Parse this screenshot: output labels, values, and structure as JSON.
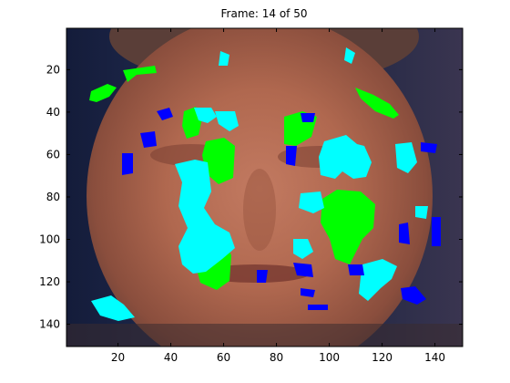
{
  "figure": {
    "title": "Frame: 14 of 50"
  },
  "axes": {
    "x_ticks": [
      {
        "value": 20,
        "label": "20"
      },
      {
        "value": 40,
        "label": "40"
      },
      {
        "value": 60,
        "label": "60"
      },
      {
        "value": 80,
        "label": "80"
      },
      {
        "value": 100,
        "label": "100"
      },
      {
        "value": 120,
        "label": "120"
      },
      {
        "value": 140,
        "label": "140"
      }
    ],
    "y_ticks": [
      {
        "value": 20,
        "label": "20"
      },
      {
        "value": 40,
        "label": "40"
      },
      {
        "value": 60,
        "label": "60"
      },
      {
        "value": 80,
        "label": "80"
      },
      {
        "value": 100,
        "label": "100"
      },
      {
        "value": 120,
        "label": "120"
      },
      {
        "value": 140,
        "label": "140"
      }
    ],
    "x_range": [
      0.5,
      150.5
    ],
    "y_range": [
      0.5,
      150.5
    ],
    "y_reversed": true
  },
  "image": {
    "subject": "face-video-frame",
    "overlay_colors": {
      "green": "#00ff00",
      "cyan": "#00ffff",
      "blue": "#0000ff"
    }
  }
}
